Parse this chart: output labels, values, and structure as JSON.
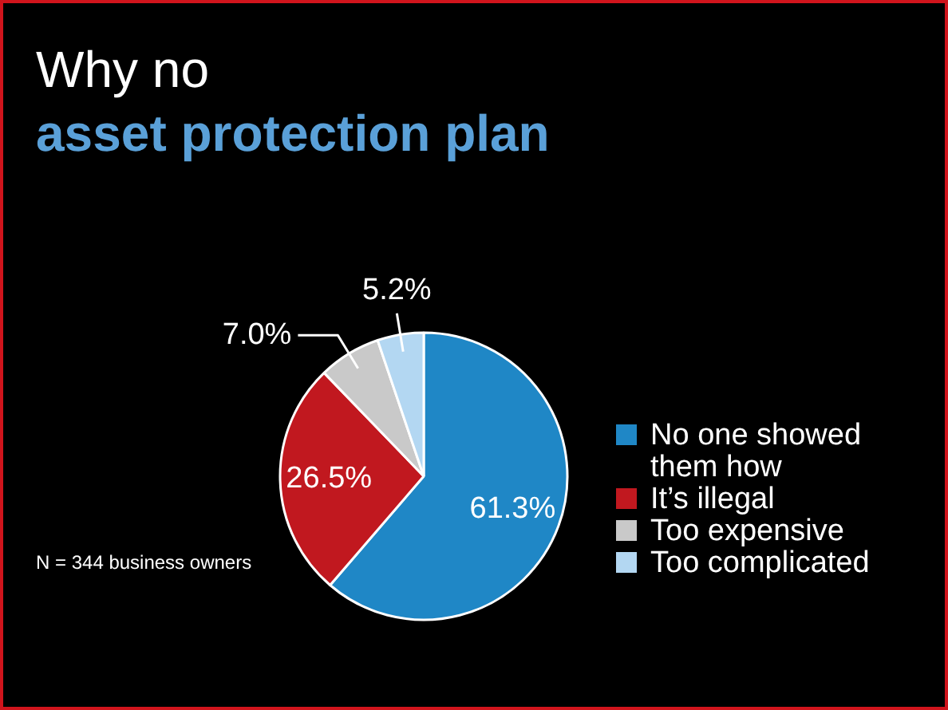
{
  "chart_data": {
    "type": "pie",
    "title": "Why no",
    "subtitle": "asset protection plan",
    "categories": [
      "No one showed them how",
      "It’s illegal",
      "Too expensive",
      "Too complicated"
    ],
    "values": [
      61.3,
      26.5,
      7.0,
      5.2
    ],
    "colors": [
      "#1f87c6",
      "#c1181f",
      "#c9c9c9",
      "#b3d7f2"
    ],
    "value_labels": [
      "61.3%",
      "26.5%",
      "7.0%",
      "5.2%"
    ],
    "legend": "right",
    "annotations": [
      "N = 344 business owners"
    ]
  }
}
